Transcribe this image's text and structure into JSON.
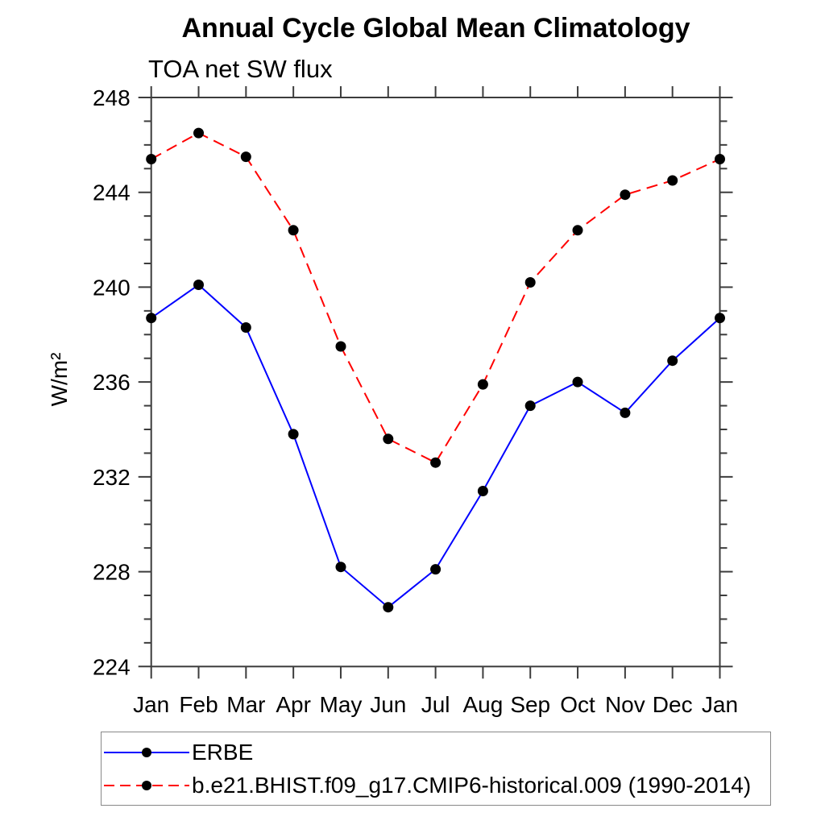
{
  "title": "Annual Cycle Global Mean Climatology",
  "subtitle": "TOA net SW flux",
  "ylabel": "W/m²",
  "chart_data": {
    "type": "line",
    "categories": [
      "Jan",
      "Feb",
      "Mar",
      "Apr",
      "May",
      "Jun",
      "Jul",
      "Aug",
      "Sep",
      "Oct",
      "Nov",
      "Dec",
      "Jan"
    ],
    "series": [
      {
        "name": "ERBE",
        "color": "#0000ff",
        "line_style": "solid",
        "marker": "filled-circle",
        "marker_color": "#000000",
        "values": [
          238.7,
          240.1,
          238.3,
          233.8,
          228.2,
          226.5,
          228.1,
          231.4,
          235.0,
          236.0,
          234.7,
          236.9,
          238.7
        ]
      },
      {
        "name": "b.e21.BHIST.f09_g17.CMIP6-historical.009 (1990-2014)",
        "color": "#ff0000",
        "line_style": "dashed",
        "marker": "filled-circle",
        "marker_color": "#000000",
        "values": [
          245.4,
          246.5,
          245.5,
          242.4,
          237.5,
          233.6,
          232.6,
          235.9,
          240.2,
          242.4,
          243.9,
          244.5,
          245.4
        ]
      }
    ],
    "ylim": [
      224,
      248
    ],
    "yticks_major": [
      224,
      228,
      232,
      236,
      240,
      244,
      248
    ],
    "ytick_minor_step": 1,
    "grid": false,
    "legend_position": "bottom",
    "axis_color": "#3c3c3c"
  }
}
